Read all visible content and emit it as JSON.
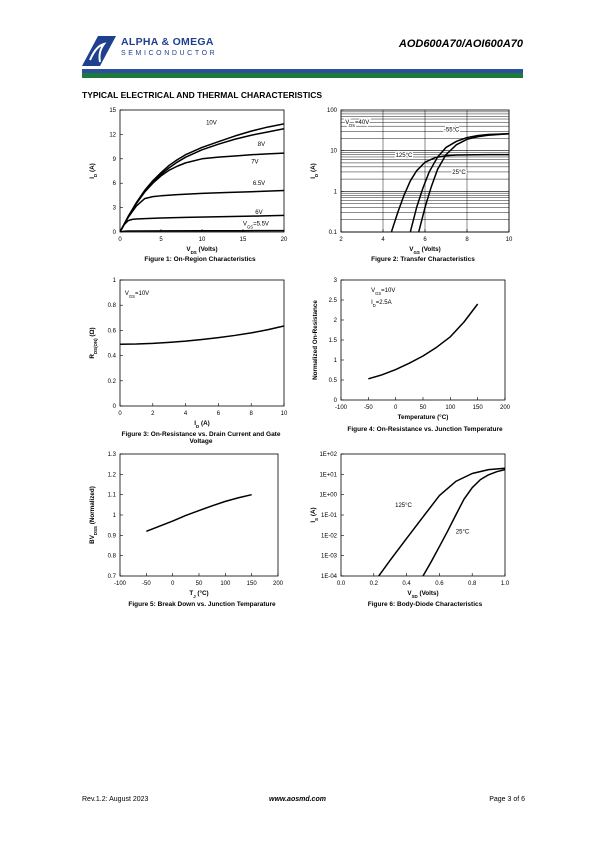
{
  "header": {
    "brand_line1": "ALPHA & OMEGA",
    "brand_line2": "SEMICONDUCTOR",
    "part_number": "AOD600A70/AOI600A70",
    "brand_colors": {
      "blue": "#2d4fa0",
      "green": "#1d7a3a"
    }
  },
  "section_title": "TYPICAL ELECTRICAL AND THERMAL CHARACTERISTICS",
  "footer": {
    "revision": "Rev.1.2: August 2023",
    "website": "www.aosmd.com",
    "page": "Page 3 of 6"
  },
  "chart_data": [
    {
      "id": "fig1",
      "type": "line",
      "caption": "Figure 1: On-Region Characteristics",
      "xlabel": "V_DS (Volts)",
      "ylabel": "I_D (A)",
      "xlim": [
        0,
        20
      ],
      "ylim": [
        0,
        15
      ],
      "xticks": [
        0,
        5,
        10,
        15,
        20
      ],
      "yticks": [
        0,
        3,
        6,
        9,
        12,
        15
      ],
      "grid": false,
      "series": [
        {
          "name": "10V",
          "x": [
            0,
            1,
            2,
            3,
            4,
            5,
            6,
            7,
            8,
            10,
            12,
            14,
            16,
            18,
            20
          ],
          "y": [
            0,
            1.9,
            3.6,
            5.1,
            6.3,
            7.3,
            8.2,
            8.9,
            9.5,
            10.4,
            11.1,
            11.8,
            12.4,
            12.9,
            13.3
          ]
        },
        {
          "name": "8V",
          "x": [
            0,
            1,
            2,
            3,
            4,
            5,
            6,
            7,
            8,
            10,
            12,
            14,
            16,
            18,
            20
          ],
          "y": [
            0,
            1.9,
            3.6,
            5.0,
            6.2,
            7.1,
            7.9,
            8.6,
            9.2,
            10.1,
            10.8,
            11.4,
            11.9,
            12.3,
            12.7
          ]
        },
        {
          "name": "7V",
          "x": [
            0,
            1,
            2,
            3,
            4,
            5,
            6,
            7,
            8,
            10,
            12,
            14,
            16,
            18,
            20
          ],
          "y": [
            0,
            1.9,
            3.5,
            4.9,
            6.0,
            6.9,
            7.6,
            8.1,
            8.5,
            9.0,
            9.2,
            9.35,
            9.5,
            9.6,
            9.7
          ]
        },
        {
          "name": "6.5V",
          "x": [
            0,
            1,
            2,
            3,
            4,
            5,
            7,
            10,
            13,
            16,
            20
          ],
          "y": [
            0,
            1.8,
            3.2,
            4.1,
            4.35,
            4.45,
            4.6,
            4.75,
            4.85,
            4.95,
            5.1
          ]
        },
        {
          "name": "6V",
          "x": [
            0,
            0.5,
            1,
            1.5,
            2,
            3,
            5,
            8,
            12,
            16,
            20
          ],
          "y": [
            0,
            0.9,
            1.4,
            1.55,
            1.6,
            1.65,
            1.72,
            1.8,
            1.87,
            1.95,
            2.05
          ]
        },
        {
          "name": "V_GS=5.5V",
          "x": [
            0,
            0.5,
            1,
            2,
            5,
            10,
            15,
            20
          ],
          "y": [
            0,
            0.1,
            0.12,
            0.13,
            0.14,
            0.15,
            0.16,
            0.17
          ]
        }
      ],
      "labels": [
        "10V",
        "8V",
        "7V",
        "6.5V",
        "6V",
        "V_GS=5.5V"
      ]
    },
    {
      "id": "fig2",
      "type": "line",
      "caption": "Figure 2: Transfer Characteristics",
      "xlabel": "V_GS (Volts)",
      "ylabel": "I_D (A)",
      "xlim": [
        2,
        10
      ],
      "ylim": [
        0.1,
        100
      ],
      "yscale": "log",
      "xticks": [
        2,
        4,
        6,
        8,
        10
      ],
      "yticks": [
        0.1,
        1,
        10,
        100
      ],
      "grid": true,
      "series": [
        {
          "name": "125°C",
          "x": [
            4.4,
            4.7,
            5.0,
            5.3,
            5.6,
            6.0,
            6.5,
            7.0,
            7.5,
            8.0,
            9.0,
            10.0
          ],
          "y": [
            0.1,
            0.3,
            0.8,
            1.8,
            3.2,
            5.2,
            6.8,
            7.5,
            7.8,
            7.9,
            8.0,
            8.0
          ]
        },
        {
          "name": "25°C",
          "x": [
            5.3,
            5.6,
            5.9,
            6.2,
            6.6,
            7.0,
            7.5,
            8.0,
            8.5,
            9.0,
            10.0
          ],
          "y": [
            0.1,
            0.4,
            1.2,
            3.0,
            7.0,
            12.0,
            17.0,
            21.0,
            23.5,
            25.0,
            26.0
          ]
        },
        {
          "name": "-55°C",
          "x": [
            5.7,
            6.0,
            6.3,
            6.6,
            7.0,
            7.5,
            8.0,
            8.5,
            9.0,
            10.0
          ],
          "y": [
            0.1,
            0.4,
            1.3,
            3.5,
            8.0,
            14.0,
            19.0,
            22.0,
            24.0,
            26.0
          ]
        }
      ],
      "labels": [
        "V_DS=40V",
        "-55°C",
        "125°C",
        "25°C"
      ]
    },
    {
      "id": "fig3",
      "type": "line",
      "caption": "Figure 3: On-Resistance vs. Drain Current and Gate Voltage",
      "xlabel": "I_D (A)",
      "ylabel": "R_DS(ON) (Ω)",
      "xlim": [
        0,
        10
      ],
      "ylim": [
        0,
        1
      ],
      "xticks": [
        0,
        2,
        4,
        6,
        8,
        10
      ],
      "yticks": [
        0,
        0.2,
        0.4,
        0.6,
        0.8,
        1
      ],
      "grid": false,
      "series": [
        {
          "name": "V_GS=10V",
          "x": [
            0,
            1,
            2,
            3,
            4,
            5,
            6,
            7,
            8,
            9,
            10
          ],
          "y": [
            0.49,
            0.492,
            0.497,
            0.505,
            0.515,
            0.528,
            0.543,
            0.56,
            0.58,
            0.605,
            0.635
          ]
        }
      ],
      "labels": [
        "V_GS=10V"
      ]
    },
    {
      "id": "fig4",
      "type": "line",
      "caption": "Figure 4: On-Resistance vs. Junction Temperature",
      "xlabel": "Temperature (°C)",
      "ylabel": "Normalized On-Resistance",
      "xlim": [
        -100,
        200
      ],
      "ylim": [
        0,
        3
      ],
      "xticks": [
        -100,
        -50,
        0,
        50,
        100,
        150,
        200
      ],
      "yticks": [
        0,
        0.5,
        1,
        1.5,
        2,
        2.5,
        3
      ],
      "grid": false,
      "series": [
        {
          "name": "V_GS=10V, I_D=2.5A",
          "x": [
            -50,
            -25,
            0,
            25,
            50,
            75,
            100,
            125,
            150
          ],
          "y": [
            0.53,
            0.63,
            0.76,
            0.92,
            1.1,
            1.32,
            1.58,
            1.95,
            2.4
          ]
        }
      ],
      "labels": [
        "V_GS=10V",
        "I_D=2.5A"
      ]
    },
    {
      "id": "fig5",
      "type": "line",
      "caption": "Figure 5: Break Down vs. Junction Temparature",
      "xlabel": "T_J (°C)",
      "ylabel": "BV_DSS (Normalized)",
      "xlim": [
        -100,
        200
      ],
      "ylim": [
        0.7,
        1.3
      ],
      "xticks": [
        -100,
        -50,
        0,
        50,
        100,
        150,
        200
      ],
      "yticks": [
        0.7,
        0.8,
        0.9,
        1,
        1.1,
        1.2,
        1.3
      ],
      "grid": false,
      "series": [
        {
          "name": "BVDSS",
          "x": [
            -50,
            -25,
            0,
            25,
            50,
            75,
            100,
            125,
            150
          ],
          "y": [
            0.92,
            0.945,
            0.97,
            0.998,
            1.022,
            1.045,
            1.067,
            1.085,
            1.1
          ]
        }
      ],
      "labels": []
    },
    {
      "id": "fig6",
      "type": "line",
      "caption": "Figure 6: Body-Diode Characteristics",
      "xlabel": "V_SD (Volts)",
      "ylabel": "I_S (A)",
      "xlim": [
        0,
        1
      ],
      "ylim": [
        0.0001,
        100
      ],
      "yscale": "log",
      "xticks": [
        0.0,
        0.2,
        0.4,
        0.6,
        0.8,
        1.0
      ],
      "xtick_labels": [
        "0.0",
        "0.2",
        "0.4",
        "0.6",
        "0.8",
        "1.0"
      ],
      "yticks": [
        0.0001,
        0.001,
        0.01,
        0.1,
        1,
        10,
        100
      ],
      "ytick_labels": [
        "1E-04",
        "1E-03",
        "1E-02",
        "1E-01",
        "1E+00",
        "1E+01",
        "1E+02"
      ],
      "grid": false,
      "series": [
        {
          "name": "125°C",
          "x": [
            0.23,
            0.3,
            0.4,
            0.5,
            0.6,
            0.7,
            0.8,
            0.9,
            1.0
          ],
          "y": [
            0.0001,
            0.0006,
            0.007,
            0.08,
            0.9,
            4.5,
            11,
            17,
            20
          ]
        },
        {
          "name": "25°C",
          "x": [
            0.5,
            0.55,
            0.6,
            0.65,
            0.7,
            0.75,
            0.8,
            0.85,
            0.9,
            0.95,
            1.0
          ],
          "y": [
            0.0001,
            0.0005,
            0.0028,
            0.016,
            0.1,
            0.6,
            2.2,
            5.5,
            9.5,
            13.5,
            17
          ]
        }
      ],
      "labels": [
        "125°C",
        "25°C"
      ]
    }
  ]
}
